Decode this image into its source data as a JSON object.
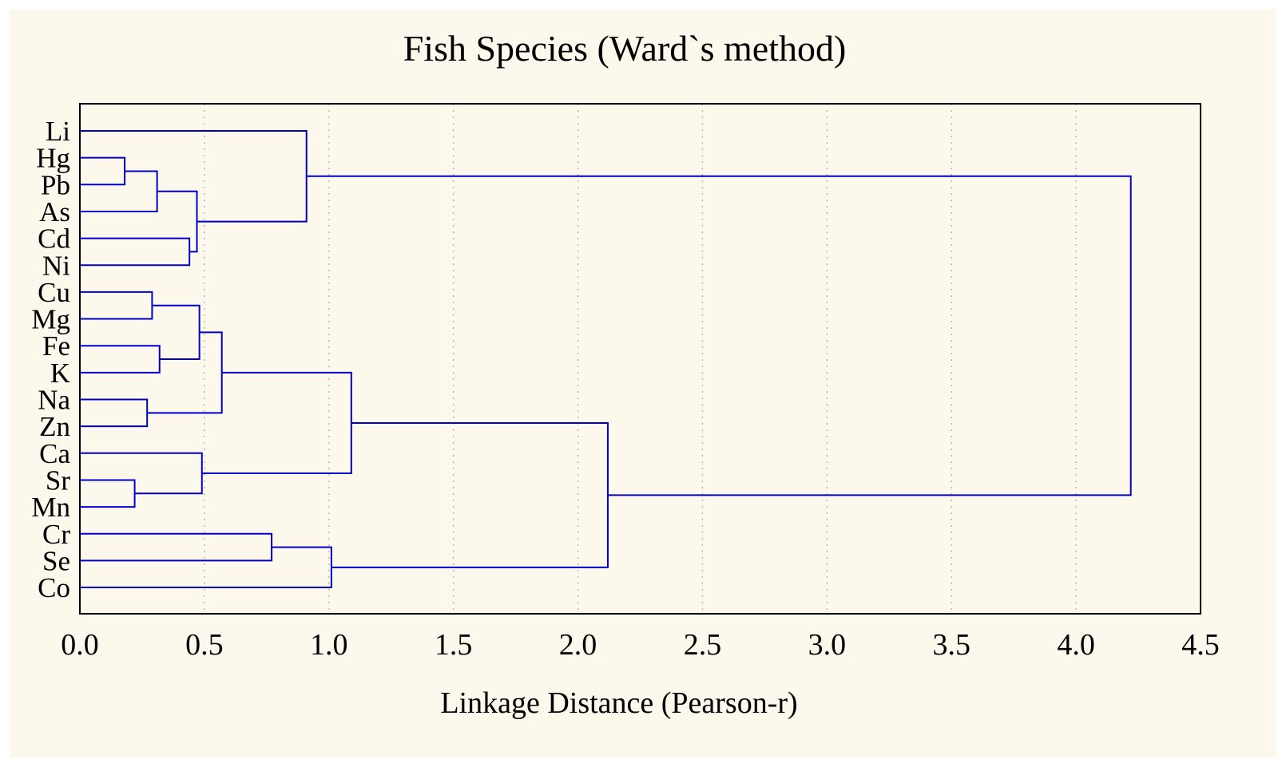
{
  "chart_data": {
    "type": "dendrogram",
    "title": "Fish Species (Ward`s method)",
    "xlabel": "Linkage Distance (Pearson-r)",
    "ylabel": "",
    "xlim": [
      0,
      4.5
    ],
    "x_ticks": [
      "0.0",
      "0.5",
      "1.0",
      "1.5",
      "2.0",
      "2.5",
      "3.0",
      "3.5",
      "4.0",
      "4.5"
    ],
    "grid": true,
    "line_color": "#0000cc",
    "background_color": "#fdf8ec",
    "leaves": [
      "Li",
      "Hg",
      "Pb",
      "As",
      "Cd",
      "Ni",
      "Cu",
      "Mg",
      "Fe",
      "K",
      "Na",
      "Zn",
      "Ca",
      "Sr",
      "Mn",
      "Cr",
      "Se",
      "Co"
    ],
    "merges": [
      {
        "a": "Hg",
        "b": "Pb",
        "height": 0.18
      },
      {
        "a": "Sr",
        "b": "Mn",
        "height": 0.22
      },
      {
        "a": "Na",
        "b": "Zn",
        "height": 0.27
      },
      {
        "a": "Cu",
        "b": "Mg",
        "height": 0.29
      },
      {
        "a": "Hg-Pb",
        "b": "As",
        "height": 0.31
      },
      {
        "a": "Fe",
        "b": "K",
        "height": 0.32
      },
      {
        "a": "Cd",
        "b": "Ni",
        "height": 0.44
      },
      {
        "a": "Hg-Pb-As",
        "b": "Cd-Ni",
        "height": 0.47
      },
      {
        "a": "Cu-Mg",
        "b": "Fe-K",
        "height": 0.48
      },
      {
        "a": "Ca",
        "b": "Sr-Mn",
        "height": 0.49
      },
      {
        "a": "Cu-Mg-Fe-K",
        "b": "Na-Zn",
        "height": 0.57
      },
      {
        "a": "Cr",
        "b": "Se",
        "height": 0.77
      },
      {
        "a": "Li",
        "b": "Hg-Pb-As-Cd-Ni",
        "height": 0.91
      },
      {
        "a": "Cr-Se",
        "b": "Co",
        "height": 1.01
      },
      {
        "a": "Cu-Mg-Fe-K-Na-Zn",
        "b": "Ca-Sr-Mn",
        "height": 1.09
      },
      {
        "a": "Cu-Mg-Fe-K-Na-Zn-Ca-Sr-Mn",
        "b": "Cr-Se-Co",
        "height": 2.12
      },
      {
        "a": "Li-Hg-Pb-As-Cd-Ni",
        "b": "Cu-Mg-Fe-K-Na-Zn-Ca-Sr-Mn-Cr-Se-Co",
        "height": 4.22
      }
    ]
  }
}
